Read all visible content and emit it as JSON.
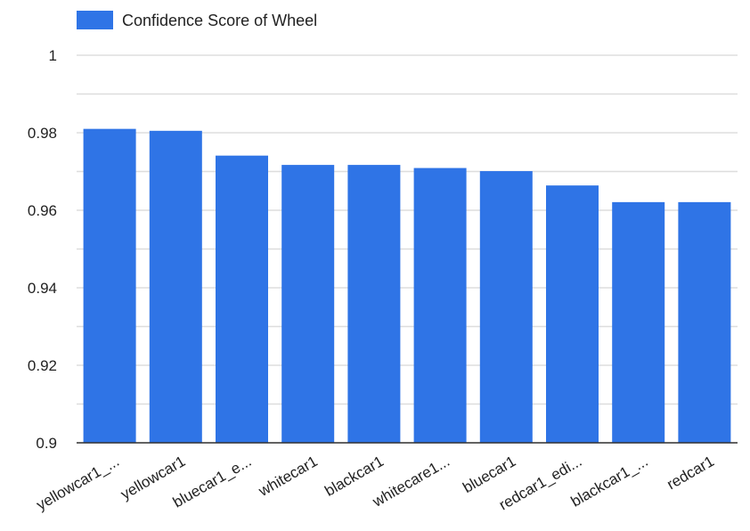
{
  "colors": {
    "bar": "#2f74e6",
    "grid": "#dddddd",
    "axis": "#333333"
  },
  "chart_data": {
    "type": "bar",
    "legend": {
      "position": "top-left",
      "entries": [
        "Confidence Score of Wheel"
      ]
    },
    "categories": [
      "yellowcar1_...",
      "yellowcar1",
      "bluecar1_e...",
      "whitecar1",
      "blackcar1",
      "whitecare1...",
      "bluecar1",
      "redcar1_edi...",
      "blackcar1_...",
      "redcar1"
    ],
    "series": [
      {
        "name": "Confidence Score of Wheel",
        "values": [
          0.981,
          0.9805,
          0.9741,
          0.9717,
          0.9717,
          0.9709,
          0.9701,
          0.9664,
          0.9621,
          0.9621
        ]
      }
    ],
    "ylim": [
      0.9,
      1
    ],
    "yticks": [
      1,
      0.98,
      0.96,
      0.94,
      0.92,
      0.9
    ],
    "ytick_labels": [
      "1",
      "0.98",
      "0.96",
      "0.94",
      "0.92",
      "0.9"
    ],
    "grid": true,
    "xlabel": "",
    "ylabel": "",
    "title": ""
  }
}
